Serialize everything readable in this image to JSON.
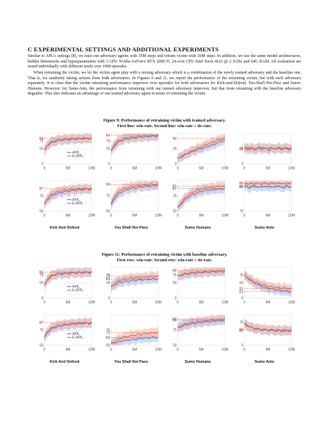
{
  "section": {
    "title": "C    EXPERIMENTAL SETTINGS AND ADDITIONAL EXPERIMENTS",
    "para1": "Similar to APL’s settings [8], we train our adversary agents with 35M steps and retrain victim with 10M steps. In addition, we use the same model architectures, hidden dimensions and hyperparameters with 1 GPU Nvidia GeForce RTX 2080 Ti, 24-core CPU Intel Xeon 4116 @ 2.1GHz and 64G RAM. All evaluation are tested individually with different seeds over 1000 episodes.",
    "para2_a": "When retraining the victim, we let the victim agent play with a mixing adversary which is a combination of the newly trained adversary and the baseline one. That is, we randomly taking actions from both adversaries. In Figures 9 and 11, we report the performance of the retraining victim, but with each adversary separately. It is clear that the victim retraining performance improves over episodes for both adversaries for ",
    "para2_it1": "Kick-and-Defend",
    "para2_b": ", ",
    "para2_it2": "You-Shall-Not-Pass",
    "para2_c": " and ",
    "para2_it3": "Sumo-Humans",
    "para2_d": ". However, for ",
    "para2_it4": "Sumo-Ants",
    "para2_e": ", the performance from retraining with our trained adversary improves, but that from retraining with the baseline adversary degrades. This also indicates an advantage of our trained adversary agent in terms of retraining the victim."
  },
  "figure9": {
    "caption_line1": "Figure 9: Performance of retraining victim with trained adversary.",
    "caption_line2": "First line: win-rate. Second line: win-rate + tie-rate."
  },
  "figure11": {
    "caption_line1": "Figure 11: Performance of retraining victim with baseline adversary.",
    "caption_line2": "First row: win-rate. Second row: win-rate + tie-rate."
  },
  "column_labels": [
    "Kick And Defend",
    "You Shall Not Pass",
    "Sumo Humans",
    "Sumo Ants"
  ],
  "x_ticks": [
    "0",
    "5M",
    "10M"
  ],
  "legend": {
    "apil": "APIL",
    "eapil": "E-APIL"
  },
  "colors": {
    "apil": "#3b6fd1",
    "eapil": "#e2563a",
    "apil_band": "#a9c3ee",
    "eapil_band": "#f4b2a2"
  },
  "chart_data": [
    {
      "id": "f9-kd-win",
      "type": "line",
      "ylim": [
        0,
        100
      ],
      "yticks": [
        0,
        50,
        75
      ],
      "marker_red": "84",
      "marker_blue": "",
      "legend": true,
      "series": [
        {
          "name": "APIL",
          "values": [
            45,
            58,
            66,
            70,
            73,
            75,
            77,
            78,
            79,
            80,
            80,
            81,
            82,
            82,
            82,
            83,
            83,
            83,
            84,
            84
          ]
        },
        {
          "name": "E-APIL",
          "values": [
            42,
            60,
            68,
            73,
            76,
            78,
            80,
            80,
            81,
            82,
            82,
            83,
            83,
            83,
            84,
            84,
            84,
            84,
            84,
            84
          ]
        }
      ]
    },
    {
      "id": "f9-ysnp-win",
      "type": "line",
      "ylim": [
        0,
        100
      ],
      "yticks": [
        0,
        50,
        75
      ],
      "marker_red": "94",
      "marker_blue": "",
      "legend": false,
      "series": [
        {
          "name": "APIL",
          "values": [
            40,
            55,
            65,
            72,
            76,
            79,
            81,
            83,
            84,
            85,
            86,
            87,
            88,
            89,
            89,
            90,
            90,
            91,
            91,
            91
          ]
        },
        {
          "name": "E-APIL",
          "values": [
            42,
            60,
            70,
            77,
            81,
            84,
            86,
            87,
            88,
            89,
            90,
            91,
            91,
            92,
            92,
            93,
            93,
            94,
            94,
            94
          ]
        }
      ]
    },
    {
      "id": "f9-sh-win",
      "type": "line",
      "ylim": [
        0,
        50
      ],
      "yticks": [
        0,
        25
      ],
      "marker_red": "42",
      "marker_blue": "",
      "legend": false,
      "series": [
        {
          "name": "APIL",
          "values": [
            8,
            11,
            13,
            15,
            17,
            19,
            20,
            22,
            23,
            25,
            26,
            27,
            29,
            30,
            31,
            33,
            35,
            36,
            38,
            39
          ]
        },
        {
          "name": "E-APIL",
          "values": [
            9,
            12,
            14,
            16,
            18,
            20,
            22,
            24,
            26,
            27,
            29,
            31,
            33,
            34,
            36,
            37,
            39,
            40,
            41,
            42
          ]
        }
      ]
    },
    {
      "id": "f9-sa-win",
      "type": "line",
      "ylim": [
        0,
        50
      ],
      "yticks": [
        0,
        25
      ],
      "marker_red": "25",
      "marker_blue": "",
      "legend": false,
      "series": [
        {
          "name": "APIL",
          "values": [
            25,
            27,
            24,
            26,
            23,
            25,
            27,
            24,
            26,
            25,
            23,
            26,
            24,
            27,
            25,
            24,
            26,
            25,
            24,
            25
          ]
        },
        {
          "name": "E-APIL",
          "values": [
            26,
            24,
            27,
            25,
            27,
            24,
            26,
            28,
            25,
            26,
            27,
            25,
            26,
            24,
            27,
            26,
            25,
            27,
            26,
            25
          ]
        }
      ]
    },
    {
      "id": "f9-kd-wt",
      "type": "line",
      "ylim": [
        50,
        100
      ],
      "yticks": [
        50,
        75
      ],
      "marker_red": "87",
      "marker_blue": "",
      "legend": true,
      "series": [
        {
          "name": "APIL",
          "values": [
            62,
            68,
            72,
            75,
            77,
            79,
            80,
            81,
            82,
            83,
            83,
            84,
            84,
            85,
            85,
            85,
            86,
            86,
            86,
            86
          ]
        },
        {
          "name": "E-APIL",
          "values": [
            60,
            70,
            75,
            78,
            80,
            82,
            83,
            84,
            84,
            85,
            85,
            86,
            86,
            86,
            87,
            87,
            87,
            87,
            87,
            87
          ]
        }
      ]
    },
    {
      "id": "f9-ysnp-wt",
      "type": "line",
      "ylim": [
        50,
        100
      ],
      "yticks": [
        50,
        75
      ],
      "marker_red": "94",
      "marker_blue": "",
      "legend": false,
      "series": [
        {
          "name": "APIL",
          "values": [
            60,
            68,
            74,
            78,
            81,
            83,
            85,
            86,
            87,
            88,
            88,
            89,
            90,
            90,
            91,
            91,
            91,
            92,
            92,
            92
          ]
        },
        {
          "name": "E-APIL",
          "values": [
            62,
            72,
            78,
            82,
            85,
            87,
            88,
            89,
            90,
            91,
            91,
            92,
            92,
            93,
            93,
            93,
            94,
            94,
            94,
            94
          ]
        }
      ]
    },
    {
      "id": "f9-sh-wt",
      "type": "line",
      "ylim": [
        50,
        100
      ],
      "yticks": [
        50,
        75
      ],
      "marker_red": "91",
      "marker_blue": "87",
      "legend": false,
      "series": [
        {
          "name": "APIL",
          "values": [
            55,
            60,
            65,
            69,
            72,
            75,
            77,
            79,
            80,
            82,
            83,
            84,
            84,
            85,
            85,
            86,
            86,
            86,
            87,
            87
          ]
        },
        {
          "name": "E-APIL",
          "values": [
            56,
            62,
            68,
            72,
            76,
            79,
            81,
            83,
            84,
            86,
            87,
            88,
            88,
            89,
            89,
            90,
            90,
            91,
            91,
            91
          ]
        }
      ]
    },
    {
      "id": "f9-sa-wt",
      "type": "line",
      "ylim": [
        75,
        100
      ],
      "yticks": [
        75,
        95
      ],
      "marker_red": "98",
      "marker_blue": "95",
      "legend": false,
      "series": [
        {
          "name": "APIL",
          "values": [
            95,
            96,
            94,
            95,
            96,
            95,
            94,
            96,
            95,
            95,
            96,
            94,
            95,
            96,
            95,
            95,
            94,
            96,
            95,
            95
          ]
        },
        {
          "name": "E-APIL",
          "values": [
            97,
            98,
            97,
            98,
            97,
            98,
            98,
            97,
            98,
            98,
            97,
            98,
            98,
            97,
            98,
            98,
            97,
            98,
            98,
            98
          ]
        }
      ]
    },
    {
      "id": "f11-kd-win",
      "type": "line",
      "ylim": [
        0,
        100
      ],
      "yticks": [
        0,
        50,
        75
      ],
      "marker_red": "85",
      "marker_blue": "",
      "legend": true,
      "series": [
        {
          "name": "APIL",
          "values": [
            40,
            58,
            67,
            72,
            75,
            77,
            78,
            79,
            80,
            81,
            81,
            82,
            82,
            82,
            83,
            83,
            83,
            84,
            84,
            84
          ]
        },
        {
          "name": "E-APIL",
          "values": [
            42,
            60,
            70,
            75,
            78,
            80,
            81,
            82,
            82,
            83,
            83,
            84,
            84,
            84,
            85,
            85,
            85,
            85,
            85,
            85
          ]
        }
      ]
    },
    {
      "id": "f11-ysnp-win",
      "type": "line",
      "ylim": [
        0,
        100
      ],
      "yticks": [
        0,
        50,
        75
      ],
      "marker_red": "71",
      "marker_blue": "63",
      "legend": false,
      "series": [
        {
          "name": "APIL",
          "values": [
            35,
            42,
            47,
            50,
            52,
            54,
            55,
            56,
            57,
            58,
            59,
            59,
            60,
            61,
            61,
            62,
            62,
            63,
            63,
            63
          ]
        },
        {
          "name": "E-APIL",
          "values": [
            36,
            45,
            52,
            56,
            59,
            61,
            63,
            64,
            65,
            66,
            67,
            67,
            68,
            69,
            69,
            70,
            70,
            71,
            71,
            71
          ]
        }
      ]
    },
    {
      "id": "f11-sh-win",
      "type": "line",
      "ylim": [
        0,
        100
      ],
      "yticks": [
        0,
        50,
        75
      ],
      "marker_red": "90",
      "marker_blue": "",
      "legend": false,
      "series": [
        {
          "name": "APIL",
          "values": [
            70,
            74,
            76,
            78,
            79,
            80,
            81,
            82,
            82,
            83,
            84,
            84,
            85,
            85,
            86,
            86,
            86,
            87,
            87,
            87
          ]
        },
        {
          "name": "E-APIL",
          "values": [
            72,
            76,
            79,
            81,
            82,
            83,
            84,
            85,
            85,
            86,
            86,
            87,
            87,
            88,
            88,
            89,
            89,
            89,
            90,
            90
          ]
        }
      ]
    },
    {
      "id": "f11-sa-win",
      "type": "line",
      "ylim": [
        0,
        100
      ],
      "yticks": [
        0,
        50,
        75
      ],
      "marker_red": "31",
      "marker_blue": "21",
      "legend": false,
      "series": [
        {
          "name": "APIL",
          "values": [
            75,
            68,
            62,
            55,
            50,
            46,
            42,
            39,
            36,
            34,
            32,
            30,
            28,
            27,
            26,
            25,
            24,
            23,
            22,
            21
          ]
        },
        {
          "name": "E-APIL",
          "values": [
            76,
            70,
            64,
            58,
            53,
            50,
            47,
            44,
            42,
            40,
            38,
            37,
            36,
            35,
            34,
            33,
            33,
            32,
            31,
            31
          ]
        }
      ]
    },
    {
      "id": "f11-kd-wt",
      "type": "line",
      "ylim": [
        50,
        100
      ],
      "yticks": [
        50,
        75
      ],
      "marker_red": "87",
      "marker_blue": "",
      "legend": true,
      "series": [
        {
          "name": "APIL",
          "values": [
            62,
            70,
            74,
            77,
            79,
            80,
            81,
            82,
            83,
            83,
            84,
            84,
            85,
            85,
            85,
            86,
            86,
            86,
            86,
            86
          ]
        },
        {
          "name": "E-APIL",
          "values": [
            63,
            72,
            76,
            79,
            81,
            82,
            83,
            84,
            84,
            85,
            85,
            86,
            86,
            86,
            87,
            87,
            87,
            87,
            87,
            87
          ]
        }
      ]
    },
    {
      "id": "f11-ysnp-wt",
      "type": "line",
      "ylim": [
        50,
        100
      ],
      "yticks": [
        50,
        75
      ],
      "marker_red": "71",
      "marker_blue": "63",
      "legend": false,
      "series": [
        {
          "name": "APIL",
          "values": [
            52,
            54,
            55,
            56,
            57,
            58,
            58,
            59,
            59,
            60,
            60,
            61,
            61,
            62,
            62,
            62,
            63,
            63,
            63,
            63
          ]
        },
        {
          "name": "E-APIL",
          "values": [
            53,
            56,
            58,
            60,
            62,
            63,
            64,
            65,
            66,
            67,
            67,
            68,
            68,
            69,
            69,
            70,
            70,
            71,
            71,
            71
          ]
        }
      ]
    },
    {
      "id": "f11-sh-wt",
      "type": "line",
      "ylim": [
        50,
        100
      ],
      "yticks": [
        50,
        75
      ],
      "marker_red": "93",
      "marker_blue": "91",
      "legend": false,
      "series": [
        {
          "name": "APIL",
          "values": [
            78,
            80,
            82,
            83,
            84,
            85,
            86,
            86,
            87,
            87,
            88,
            88,
            89,
            89,
            89,
            90,
            90,
            90,
            91,
            91
          ]
        },
        {
          "name": "E-APIL",
          "values": [
            79,
            82,
            84,
            85,
            86,
            87,
            88,
            88,
            89,
            89,
            90,
            90,
            91,
            91,
            92,
            92,
            92,
            93,
            93,
            93
          ]
        }
      ]
    },
    {
      "id": "f11-sa-wt",
      "type": "line",
      "ylim": [
        0,
        100
      ],
      "yticks": [
        0,
        50,
        75
      ],
      "marker_red": "50",
      "marker_blue": "",
      "legend": false,
      "series": [
        {
          "name": "APIL",
          "values": [
            72,
            66,
            62,
            58,
            56,
            54,
            52,
            51,
            50,
            50,
            49,
            49,
            48,
            48,
            48,
            47,
            47,
            47,
            47,
            47
          ]
        },
        {
          "name": "E-APIL",
          "values": [
            70,
            65,
            61,
            58,
            56,
            55,
            54,
            53,
            52,
            52,
            51,
            51,
            51,
            50,
            50,
            50,
            50,
            50,
            50,
            50
          ]
        }
      ]
    }
  ]
}
